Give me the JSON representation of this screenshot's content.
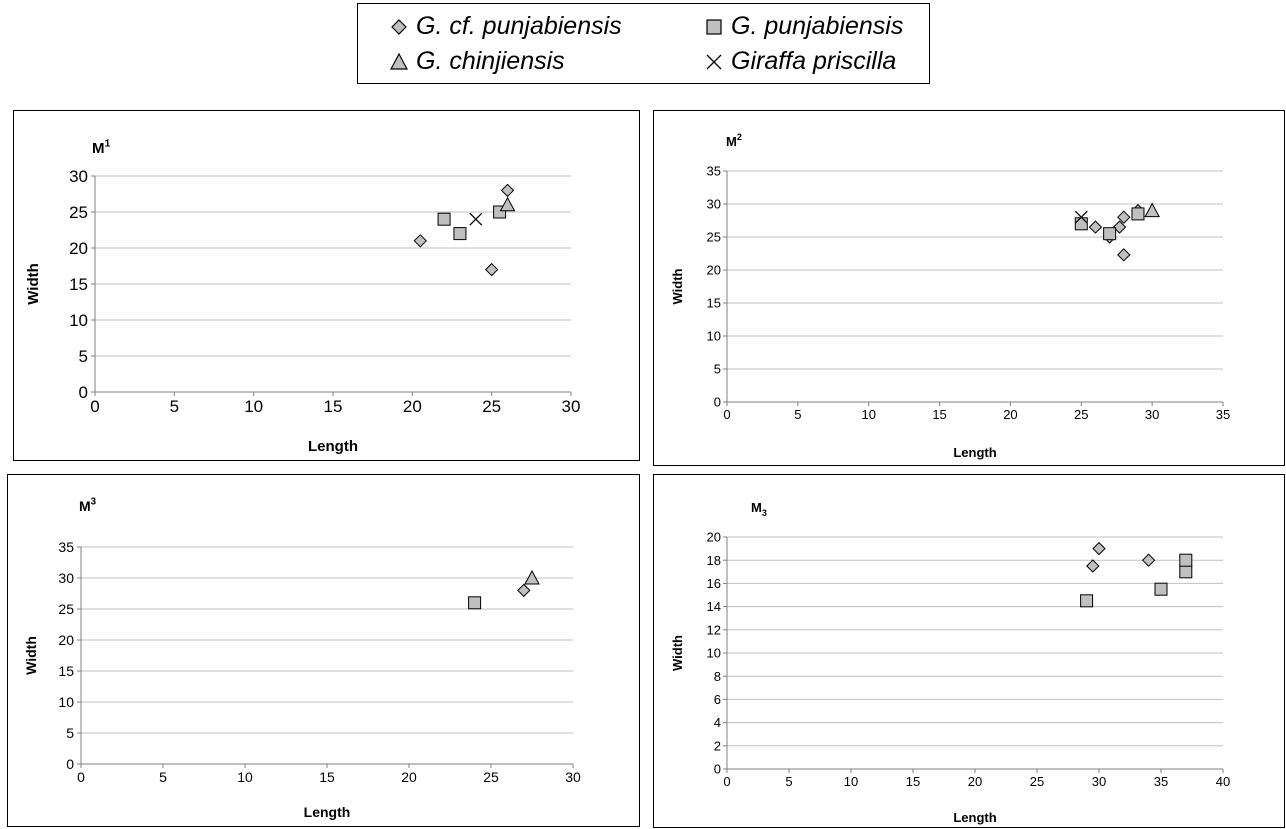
{
  "legend": {
    "items": [
      {
        "label": "G. cf. punjabiensis",
        "marker": "diamond"
      },
      {
        "label": "G. punjabiensis",
        "marker": "square"
      },
      {
        "label": "G. chinjiensis",
        "marker": "triangle"
      },
      {
        "label": "Giraffa priscilla",
        "marker": "x"
      }
    ]
  },
  "colors": {
    "marker_fill": "#c0c0c0",
    "marker_stroke": "#000000",
    "grid": "#c0c0c0"
  },
  "chart_data": [
    {
      "type": "scatter",
      "title": "M",
      "title_sup": "1",
      "title_sub": "",
      "xlabel": "Length",
      "ylabel": "Width",
      "xlim": [
        0,
        30
      ],
      "ylim": [
        0,
        30
      ],
      "xticks": [
        0,
        5,
        10,
        15,
        20,
        25,
        30
      ],
      "yticks": [
        0,
        5,
        10,
        15,
        20,
        25,
        30
      ],
      "grid": "horizontal",
      "series": [
        {
          "name": "G. cf. punjabiensis",
          "marker": "diamond",
          "points": [
            [
              20.5,
              21
            ],
            [
              25,
              17
            ],
            [
              26,
              28
            ]
          ]
        },
        {
          "name": "G. punjabiensis",
          "marker": "square",
          "points": [
            [
              22,
              24
            ],
            [
              23,
              22
            ],
            [
              25.5,
              25
            ]
          ]
        },
        {
          "name": "G. chinjiensis",
          "marker": "triangle",
          "points": [
            [
              26,
              26
            ]
          ]
        },
        {
          "name": "Giraffa priscilla",
          "marker": "x",
          "points": [
            [
              24,
              24
            ]
          ]
        }
      ]
    },
    {
      "type": "scatter",
      "title": "M",
      "title_sup": "2",
      "title_sub": "",
      "xlabel": "Length",
      "ylabel": "Width",
      "xlim": [
        0,
        35
      ],
      "ylim": [
        0,
        35
      ],
      "xticks": [
        0,
        5,
        10,
        15,
        20,
        25,
        30,
        35
      ],
      "yticks": [
        0,
        5,
        10,
        15,
        20,
        25,
        30,
        35
      ],
      "grid": "horizontal",
      "series": [
        {
          "name": "G. cf. punjabiensis",
          "marker": "diamond",
          "points": [
            [
              26,
              26.5
            ],
            [
              27,
              25
            ],
            [
              27.7,
              26.5
            ],
            [
              28,
              28
            ],
            [
              28,
              22.3
            ],
            [
              29,
              29
            ]
          ]
        },
        {
          "name": "G. punjabiensis",
          "marker": "square",
          "points": [
            [
              25,
              27
            ],
            [
              27,
              25.5
            ],
            [
              29,
              28.5
            ]
          ]
        },
        {
          "name": "G. chinjiensis",
          "marker": "triangle",
          "points": [
            [
              30,
              29
            ]
          ]
        },
        {
          "name": "Giraffa priscilla",
          "marker": "x",
          "points": [
            [
              25,
              28
            ]
          ]
        }
      ]
    },
    {
      "type": "scatter",
      "title": "M",
      "title_sup": "3",
      "title_sub": "",
      "xlabel": "Length",
      "ylabel": "Width",
      "xlim": [
        0,
        30
      ],
      "ylim": [
        0,
        35
      ],
      "xticks": [
        0,
        5,
        10,
        15,
        20,
        25,
        30
      ],
      "yticks": [
        0,
        5,
        10,
        15,
        20,
        25,
        30,
        35
      ],
      "grid": "horizontal",
      "series": [
        {
          "name": "G. cf. punjabiensis",
          "marker": "diamond",
          "points": [
            [
              27,
              28
            ]
          ]
        },
        {
          "name": "G. punjabiensis",
          "marker": "square",
          "points": [
            [
              24,
              26
            ]
          ]
        },
        {
          "name": "G. chinjiensis",
          "marker": "triangle",
          "points": [
            [
              27.5,
              30
            ]
          ]
        },
        {
          "name": "Giraffa priscilla",
          "marker": "x",
          "points": []
        }
      ]
    },
    {
      "type": "scatter",
      "title": "M",
      "title_sup": "",
      "title_sub": "3",
      "xlabel": "Length",
      "ylabel": "Width",
      "xlim": [
        0,
        40
      ],
      "ylim": [
        0,
        20
      ],
      "xticks": [
        0,
        5,
        10,
        15,
        20,
        25,
        30,
        35,
        40
      ],
      "yticks": [
        0,
        2,
        4,
        6,
        8,
        10,
        12,
        14,
        16,
        18,
        20
      ],
      "grid": "horizontal",
      "series": [
        {
          "name": "G. cf. punjabiensis",
          "marker": "diamond",
          "points": [
            [
              29.5,
              17.5
            ],
            [
              30,
              19
            ],
            [
              34,
              18
            ]
          ]
        },
        {
          "name": "G. punjabiensis",
          "marker": "square",
          "points": [
            [
              29,
              14.5
            ],
            [
              35,
              15.5
            ],
            [
              37,
              17
            ],
            [
              37,
              18
            ]
          ]
        },
        {
          "name": "G. chinjiensis",
          "marker": "triangle",
          "points": []
        },
        {
          "name": "Giraffa priscilla",
          "marker": "x",
          "points": []
        }
      ]
    }
  ]
}
